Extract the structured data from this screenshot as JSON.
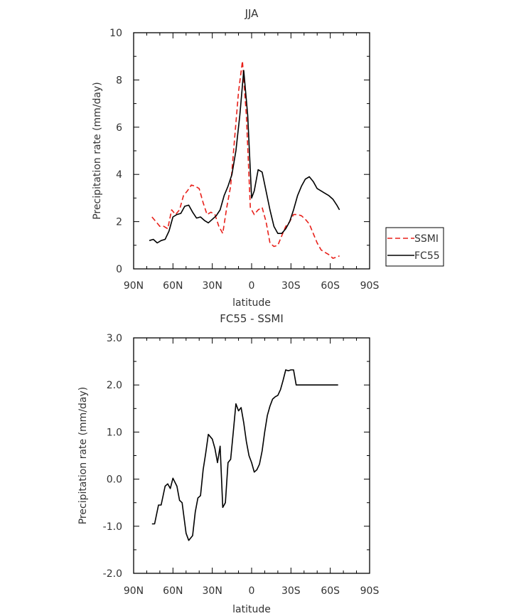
{
  "chart_data": [
    {
      "type": "line",
      "title": "JJA",
      "xlabel": "latitude",
      "ylabel": "Precipitation rate (mm/day)",
      "xlim": [
        90,
        -90
      ],
      "ylim": [
        0,
        10
      ],
      "x_ticks": [
        {
          "value": 90,
          "label": "90N"
        },
        {
          "value": 60,
          "label": "60N"
        },
        {
          "value": 30,
          "label": "30N"
        },
        {
          "value": 0,
          "label": "0"
        },
        {
          "value": -30,
          "label": "30S"
        },
        {
          "value": -60,
          "label": "60S"
        },
        {
          "value": -90,
          "label": "90S"
        }
      ],
      "y_ticks": [
        {
          "value": 0,
          "label": "0"
        },
        {
          "value": 2,
          "label": "2"
        },
        {
          "value": 4,
          "label": "4"
        },
        {
          "value": 6,
          "label": "6"
        },
        {
          "value": 8,
          "label": "8"
        },
        {
          "value": 10,
          "label": "10"
        }
      ],
      "legend_position": "right",
      "series": [
        {
          "name": "SSMI",
          "color": "#e8201a",
          "dash": "dashed",
          "x": [
            76,
            73,
            70,
            67,
            64,
            61,
            58,
            55,
            52,
            49,
            46,
            43,
            40,
            37,
            34,
            31,
            28,
            25,
            22,
            19,
            16,
            13,
            10,
            7,
            4,
            1,
            -2,
            -5,
            -8,
            -11,
            -14,
            -17,
            -20,
            -23,
            -26,
            -29,
            -32,
            -35,
            -38,
            -41,
            -44,
            -47,
            -50,
            -53,
            -56,
            -59,
            -62,
            -65,
            -67
          ],
          "y": [
            2.2,
            2.0,
            1.8,
            1.8,
            1.7,
            2.5,
            2.3,
            2.5,
            3.1,
            3.3,
            3.55,
            3.5,
            3.4,
            2.8,
            2.3,
            2.4,
            2.3,
            1.8,
            1.5,
            2.6,
            3.5,
            5.5,
            7.5,
            8.8,
            6.5,
            2.6,
            2.3,
            2.5,
            2.6,
            2.0,
            1.1,
            0.95,
            1.0,
            1.4,
            1.8,
            2.0,
            2.3,
            2.3,
            2.25,
            2.1,
            1.9,
            1.5,
            1.1,
            0.8,
            0.7,
            0.6,
            0.45,
            0.5,
            0.55
          ]
        },
        {
          "name": "FC55",
          "color": "#000000",
          "dash": "solid",
          "x": [
            78,
            75,
            72,
            69,
            66,
            63,
            60,
            57,
            54,
            51,
            48,
            45,
            42,
            39,
            36,
            33,
            30,
            27,
            24,
            21,
            18,
            15,
            12,
            9,
            6,
            3,
            0,
            -2,
            -5,
            -8,
            -11,
            -14,
            -17,
            -20,
            -23,
            -26,
            -29,
            -32,
            -35,
            -38,
            -41,
            -44,
            -47,
            -50,
            -53,
            -56,
            -59,
            -62,
            -65,
            -67
          ],
          "y": [
            1.2,
            1.25,
            1.1,
            1.2,
            1.25,
            1.6,
            2.2,
            2.3,
            2.35,
            2.65,
            2.7,
            2.4,
            2.15,
            2.2,
            2.05,
            1.95,
            2.1,
            2.25,
            2.5,
            3.1,
            3.5,
            4.0,
            5.0,
            6.5,
            8.4,
            6.5,
            3.0,
            3.3,
            4.2,
            4.1,
            3.3,
            2.5,
            1.8,
            1.5,
            1.5,
            1.7,
            2.0,
            2.5,
            3.1,
            3.5,
            3.8,
            3.9,
            3.7,
            3.4,
            3.3,
            3.2,
            3.1,
            2.95,
            2.7,
            2.5
          ]
        }
      ]
    },
    {
      "type": "line",
      "title": "FC55 - SSMI",
      "xlabel": "latitude",
      "ylabel": "Precipitation rate (mm/day)",
      "xlim": [
        90,
        -90
      ],
      "ylim": [
        -2,
        3
      ],
      "x_ticks": [
        {
          "value": 90,
          "label": "90N"
        },
        {
          "value": 60,
          "label": "60N"
        },
        {
          "value": 30,
          "label": "30N"
        },
        {
          "value": 0,
          "label": "0"
        },
        {
          "value": -30,
          "label": "30S"
        },
        {
          "value": -60,
          "label": "60S"
        },
        {
          "value": -90,
          "label": "90S"
        }
      ],
      "y_ticks": [
        {
          "value": -2,
          "label": "-2.0"
        },
        {
          "value": -1,
          "label": "-1.0"
        },
        {
          "value": 0,
          "label": "0.0"
        },
        {
          "value": 1,
          "label": "1.0"
        },
        {
          "value": 2,
          "label": "2.0"
        },
        {
          "value": 3,
          "label": "3.0"
        }
      ],
      "series": [
        {
          "name": "",
          "color": "#000000",
          "dash": "solid",
          "x": [
            76,
            74,
            71,
            69,
            66,
            64,
            62,
            60,
            57,
            55,
            53,
            50,
            48,
            45,
            43,
            41,
            39,
            37,
            35,
            33,
            30,
            28,
            26,
            24,
            22,
            20,
            18,
            16,
            14,
            12,
            10,
            8,
            6,
            4,
            2,
            0,
            -2,
            -4,
            -6,
            -8,
            -10,
            -12,
            -14,
            -16,
            -18,
            -20,
            -22,
            -24,
            -26,
            -28,
            -30,
            -32,
            -34,
            -36,
            -38,
            -40,
            -42,
            -44,
            -46,
            -48,
            -50,
            -52,
            -54,
            -56,
            -58,
            -60,
            -62,
            -64,
            -66
          ],
          "y": [
            -0.95,
            -0.95,
            -0.55,
            -0.55,
            -0.15,
            -0.1,
            -0.2,
            0.02,
            -0.15,
            -0.45,
            -0.5,
            -1.15,
            -1.3,
            -1.2,
            -0.7,
            -0.4,
            -0.35,
            0.2,
            0.55,
            0.95,
            0.85,
            0.65,
            0.35,
            0.7,
            -0.6,
            -0.5,
            0.35,
            0.42,
            1.0,
            1.6,
            1.45,
            1.52,
            1.2,
            0.8,
            0.5,
            0.35,
            0.15,
            0.2,
            0.32,
            0.6,
            1.0,
            1.35,
            1.55,
            1.7,
            1.75,
            1.78,
            1.9,
            2.1,
            2.32,
            2.3,
            2.32,
            2.32,
            2.0,
            2.0,
            2.0,
            2.0,
            2.0,
            2.0,
            2.0,
            2.0,
            2.0,
            2.0,
            2.0,
            2.0,
            2.0,
            2.0,
            2.0,
            2.0,
            2.0
          ]
        }
      ]
    }
  ]
}
